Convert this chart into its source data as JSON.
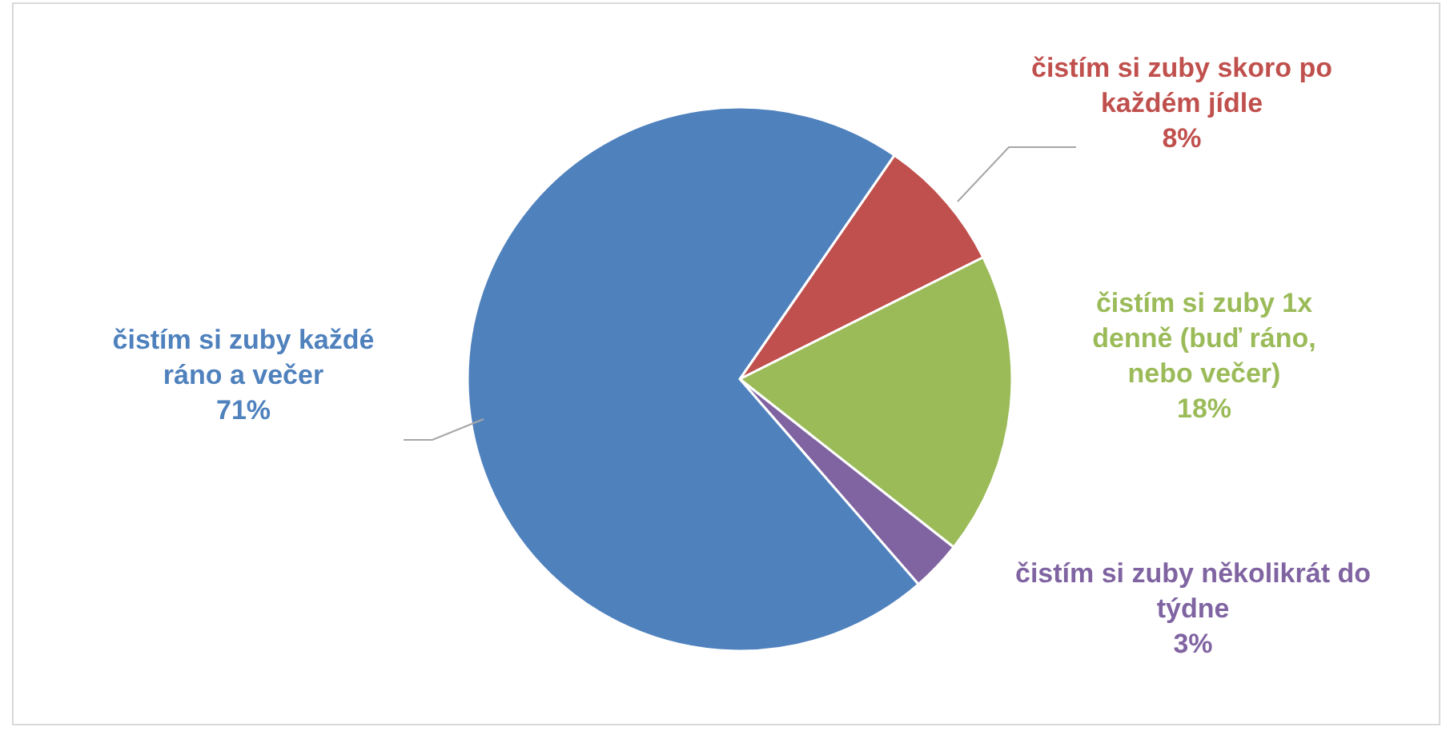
{
  "chart_data": {
    "type": "pie",
    "categories": [
      "čistím si zuby skoro po každém jídle",
      "čistím si zuby 1x denně (buď ráno, nebo večer)",
      "čistím si zuby několikrát do týdne",
      "čistím si zuby každé ráno a večer"
    ],
    "values": [
      8,
      18,
      3,
      71
    ],
    "colors": [
      "#c0504d",
      "#9bbb59",
      "#8064a2",
      "#4f81bd"
    ],
    "value_labels": [
      "8%",
      "18%",
      "3%",
      "71%"
    ]
  }
}
